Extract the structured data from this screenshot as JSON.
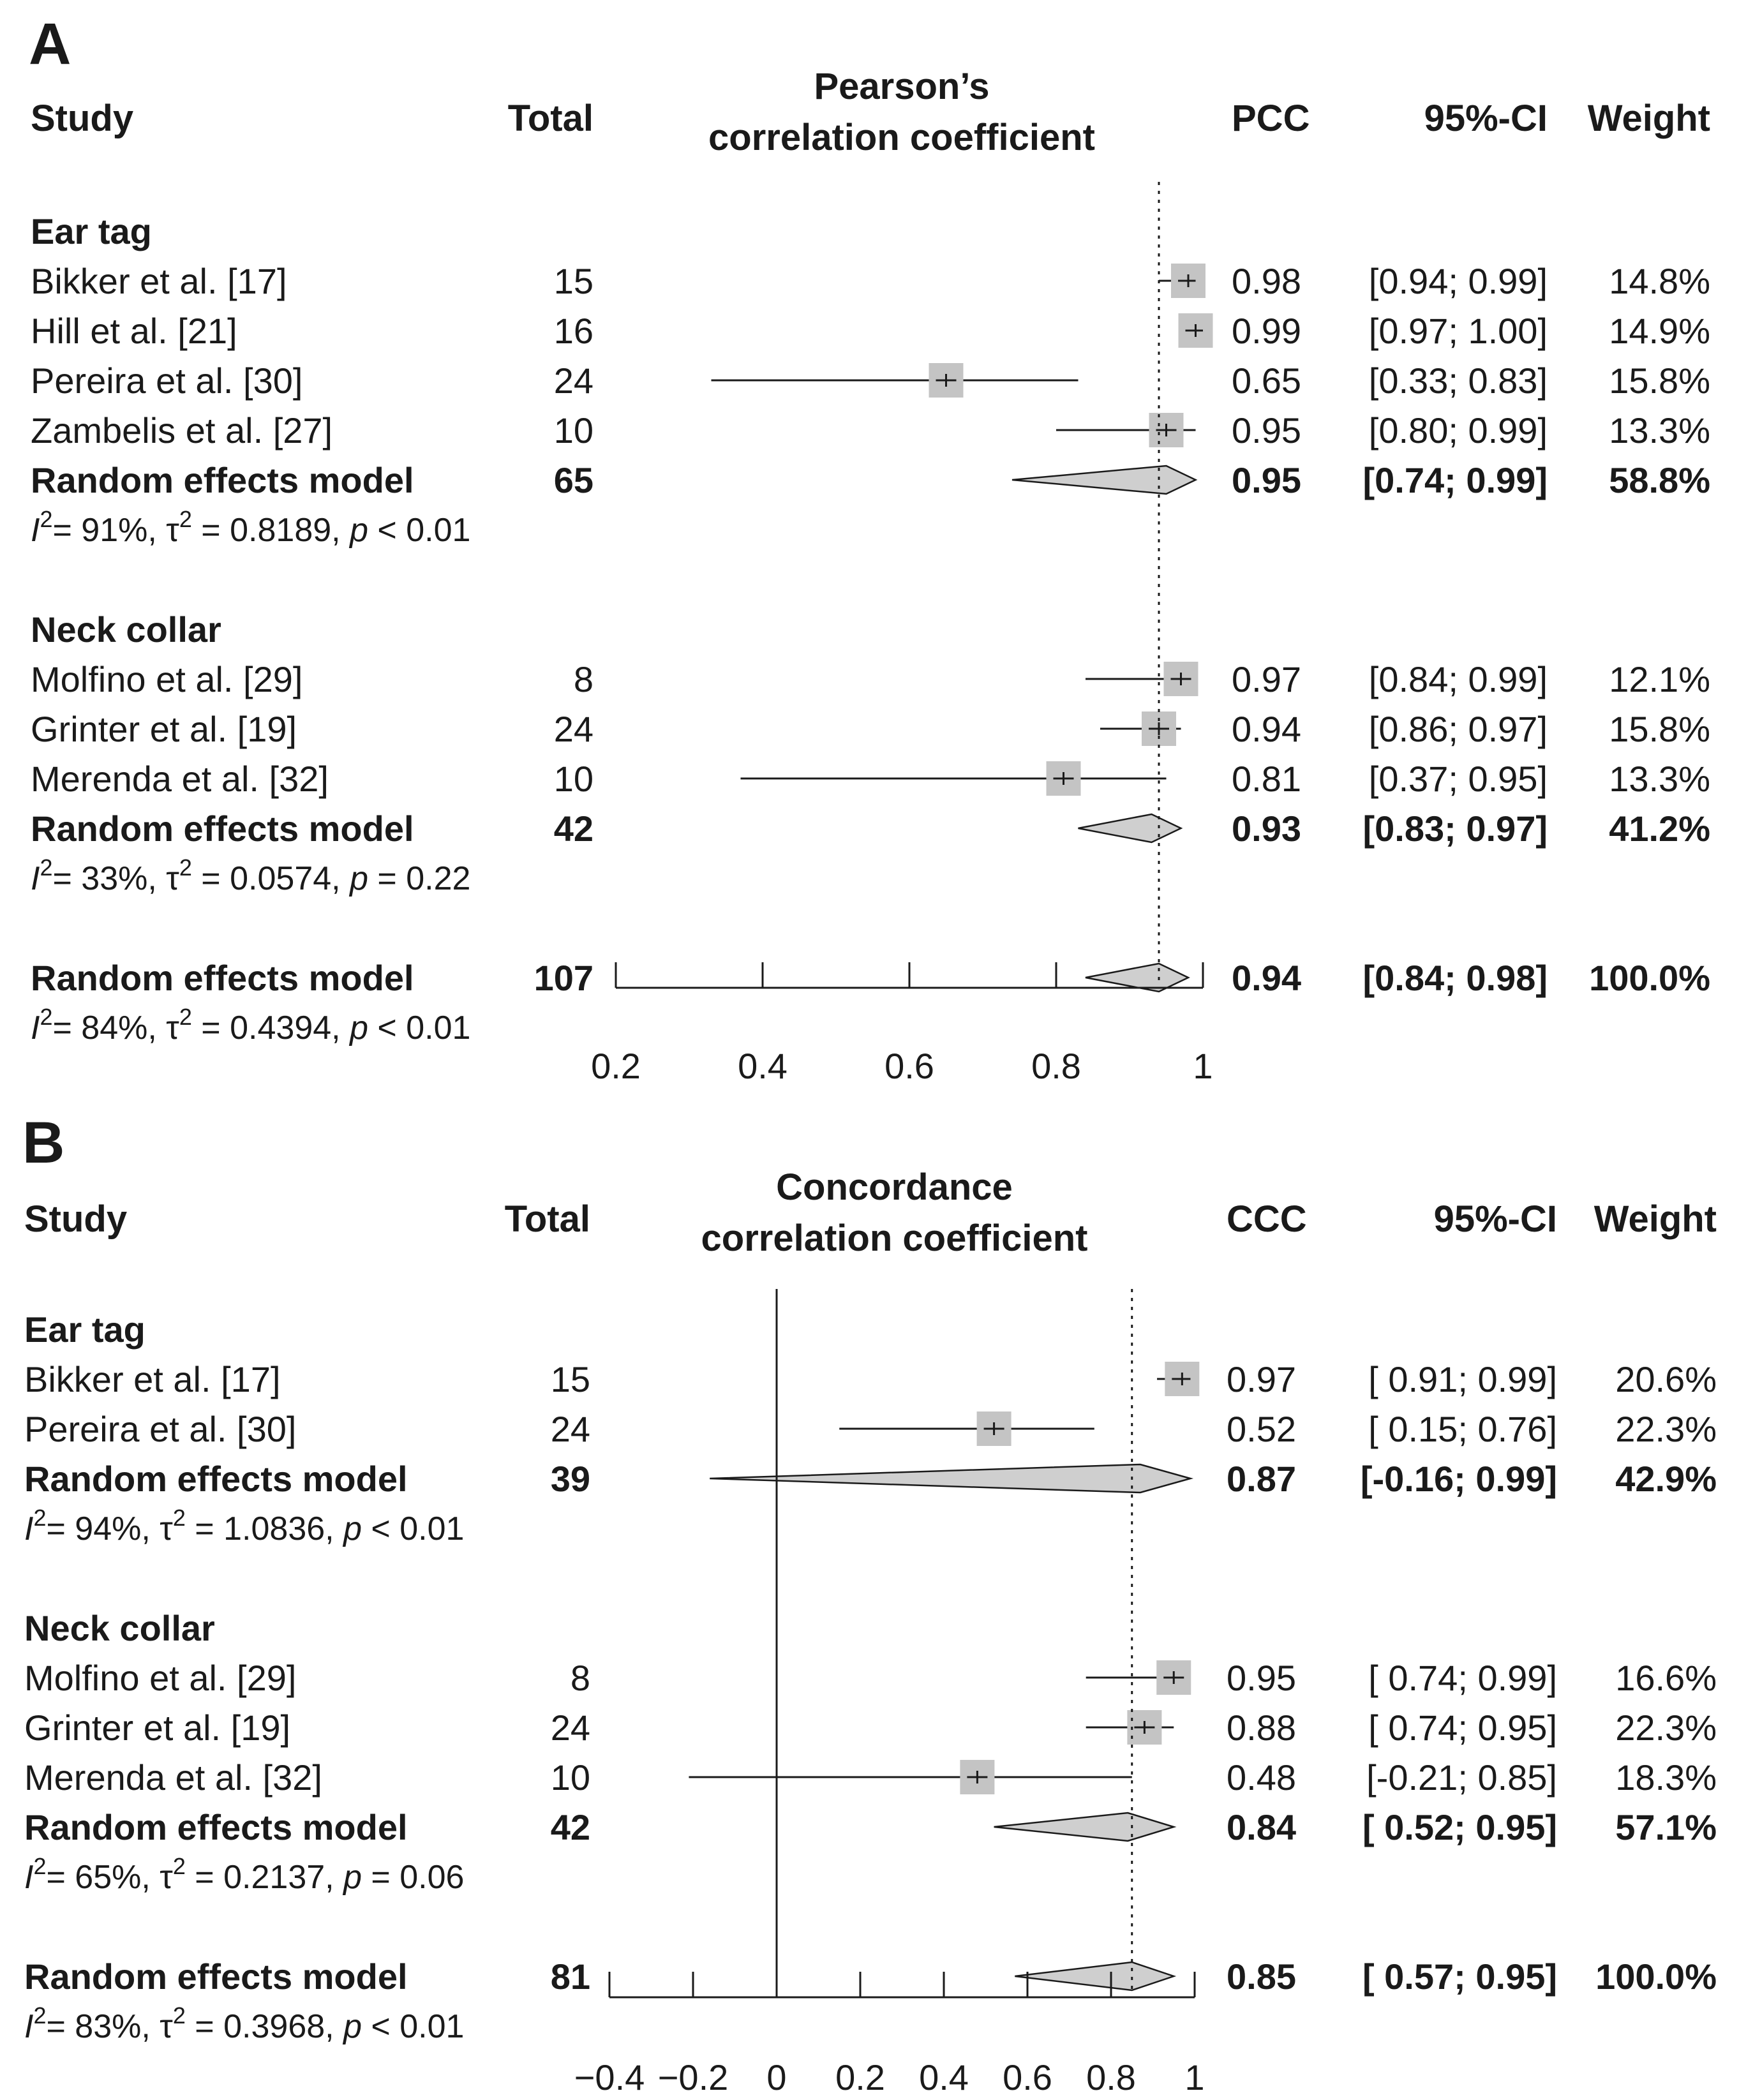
{
  "chart_data": [
    {
      "type": "forest",
      "panel": "A",
      "title_lines": [
        "Pearson’s",
        "correlation coefficient"
      ],
      "headers": {
        "study": "Study",
        "total": "Total",
        "estimate": "PCC",
        "ci": "95%-CI",
        "weight": "Weight"
      },
      "xlim": [
        0.2,
        1
      ],
      "ticks": [
        0.2,
        0.4,
        0.6,
        0.8,
        1
      ],
      "tick_labels": [
        "0.2",
        "0.4",
        "0.6",
        "0.8",
        "1"
      ],
      "zero_line": null,
      "reference_line": 0.94,
      "groups": [
        {
          "name": "Ear tag",
          "studies": [
            {
              "study": "Bikker et al. [17]",
              "total": "15",
              "est": 0.98,
              "lo": 0.94,
              "hi": 0.99,
              "est_text": "0.98",
              "ci_text": "[0.94; 0.99]",
              "weight_text": "14.8%"
            },
            {
              "study": "Hill et al. [21]",
              "total": "16",
              "est": 0.99,
              "lo": 0.97,
              "hi": 1.0,
              "est_text": "0.99",
              "ci_text": "[0.97; 1.00]",
              "weight_text": "14.9%"
            },
            {
              "study": "Pereira et al. [30]",
              "total": "24",
              "est": 0.65,
              "lo": 0.33,
              "hi": 0.83,
              "est_text": "0.65",
              "ci_text": "[0.33; 0.83]",
              "weight_text": "15.8%"
            },
            {
              "study": "Zambelis et al. [27]",
              "total": "10",
              "est": 0.95,
              "lo": 0.8,
              "hi": 0.99,
              "est_text": "0.95",
              "ci_text": "[0.80; 0.99]",
              "weight_text": "13.3%"
            }
          ],
          "summary": {
            "label": "Random effects model",
            "total": "65",
            "est": 0.95,
            "lo": 0.74,
            "hi": 0.99,
            "est_text": "0.95",
            "ci_text": "[0.74; 0.99]",
            "weight_text": "58.8%"
          },
          "heterogeneity": {
            "i2": "= 91%, ",
            "tau2": " = 0.8189, ",
            "p": " < 0.01"
          }
        },
        {
          "name": "Neck collar",
          "studies": [
            {
              "study": "Molfino et al. [29]",
              "total": "8",
              "est": 0.97,
              "lo": 0.84,
              "hi": 0.99,
              "est_text": "0.97",
              "ci_text": "[0.84; 0.99]",
              "weight_text": "12.1%"
            },
            {
              "study": "Grinter et al. [19]",
              "total": "24",
              "est": 0.94,
              "lo": 0.86,
              "hi": 0.97,
              "est_text": "0.94",
              "ci_text": "[0.86; 0.97]",
              "weight_text": "15.8%"
            },
            {
              "study": "Merenda et al. [32]",
              "total": "10",
              "est": 0.81,
              "lo": 0.37,
              "hi": 0.95,
              "est_text": "0.81",
              "ci_text": "[0.37; 0.95]",
              "weight_text": "13.3%"
            }
          ],
          "summary": {
            "label": "Random effects model",
            "total": "42",
            "est": 0.93,
            "lo": 0.83,
            "hi": 0.97,
            "est_text": "0.93",
            "ci_text": "[0.83; 0.97]",
            "weight_text": "41.2%"
          },
          "heterogeneity": {
            "i2": "= 33%, ",
            "tau2": " = 0.0574, ",
            "p": " = 0.22"
          }
        }
      ],
      "overall": {
        "summary": {
          "label": "Random effects model",
          "total": "107",
          "est": 0.94,
          "lo": 0.84,
          "hi": 0.98,
          "est_text": "0.94",
          "ci_text": "[0.84; 0.98]",
          "weight_text": "100.0%"
        },
        "heterogeneity": {
          "i2": "= 84%, ",
          "tau2": " = 0.4394, ",
          "p": " < 0.01"
        }
      }
    },
    {
      "type": "forest",
      "panel": "B",
      "title_lines": [
        "Concordance",
        "correlation coefficient"
      ],
      "headers": {
        "study": "Study",
        "total": "Total",
        "estimate": "CCC",
        "ci": "95%-CI",
        "weight": "Weight"
      },
      "xlim": [
        -0.4,
        1
      ],
      "ticks": [
        -0.4,
        -0.2,
        0,
        0.2,
        0.4,
        0.6,
        0.8,
        1
      ],
      "tick_labels": [
        "−0.4",
        "−0.2",
        "0",
        "0.2",
        "0.4",
        "0.6",
        "0.8",
        "1"
      ],
      "zero_line": 0,
      "reference_line": 0.85,
      "groups": [
        {
          "name": "Ear tag",
          "studies": [
            {
              "study": "Bikker et al. [17]",
              "total": "15",
              "est": 0.97,
              "lo": 0.91,
              "hi": 0.99,
              "est_text": "0.97",
              "ci_text": "[ 0.91; 0.99]",
              "weight_text": "20.6%"
            },
            {
              "study": "Pereira et al. [30]",
              "total": "24",
              "est": 0.52,
              "lo": 0.15,
              "hi": 0.76,
              "est_text": "0.52",
              "ci_text": "[ 0.15; 0.76]",
              "weight_text": "22.3%"
            }
          ],
          "summary": {
            "label": "Random effects model",
            "total": "39",
            "est": 0.87,
            "lo": -0.16,
            "hi": 0.99,
            "est_text": "0.87",
            "ci_text": "[-0.16; 0.99]",
            "weight_text": "42.9%"
          },
          "heterogeneity": {
            "i2": "= 94%, ",
            "tau2": " = 1.0836, ",
            "p": " < 0.01"
          }
        },
        {
          "name": "Neck collar",
          "studies": [
            {
              "study": "Molfino et al. [29]",
              "total": "8",
              "est": 0.95,
              "lo": 0.74,
              "hi": 0.99,
              "est_text": "0.95",
              "ci_text": "[ 0.74; 0.99]",
              "weight_text": "16.6%"
            },
            {
              "study": "Grinter et al. [19]",
              "total": "24",
              "est": 0.88,
              "lo": 0.74,
              "hi": 0.95,
              "est_text": "0.88",
              "ci_text": "[ 0.74; 0.95]",
              "weight_text": "22.3%"
            },
            {
              "study": "Merenda et al. [32]",
              "total": "10",
              "est": 0.48,
              "lo": -0.21,
              "hi": 0.85,
              "est_text": "0.48",
              "ci_text": "[-0.21; 0.85]",
              "weight_text": "18.3%"
            }
          ],
          "summary": {
            "label": "Random effects model",
            "total": "42",
            "est": 0.84,
            "lo": 0.52,
            "hi": 0.95,
            "est_text": "0.84",
            "ci_text": "[ 0.52; 0.95]",
            "weight_text": "57.1%"
          },
          "heterogeneity": {
            "i2": "= 65%, ",
            "tau2": " = 0.2137, ",
            "p": " = 0.06"
          }
        }
      ],
      "overall": {
        "summary": {
          "label": "Random effects model",
          "total": "81",
          "est": 0.85,
          "lo": 0.57,
          "hi": 0.95,
          "est_text": "0.85",
          "ci_text": "[ 0.57; 0.95]",
          "weight_text": "100.0%"
        },
        "heterogeneity": {
          "i2": "= 83%, ",
          "tau2": " = 0.3968, ",
          "p": " < 0.01"
        }
      }
    }
  ],
  "symbols": {
    "i": "I",
    "two": "2",
    "tau": "τ",
    "p": "p"
  },
  "colors": {
    "text": "#1a1a1a",
    "box": "#c4c4c4",
    "diamond": "#cfcfcf",
    "line": "#1a1a1a"
  }
}
